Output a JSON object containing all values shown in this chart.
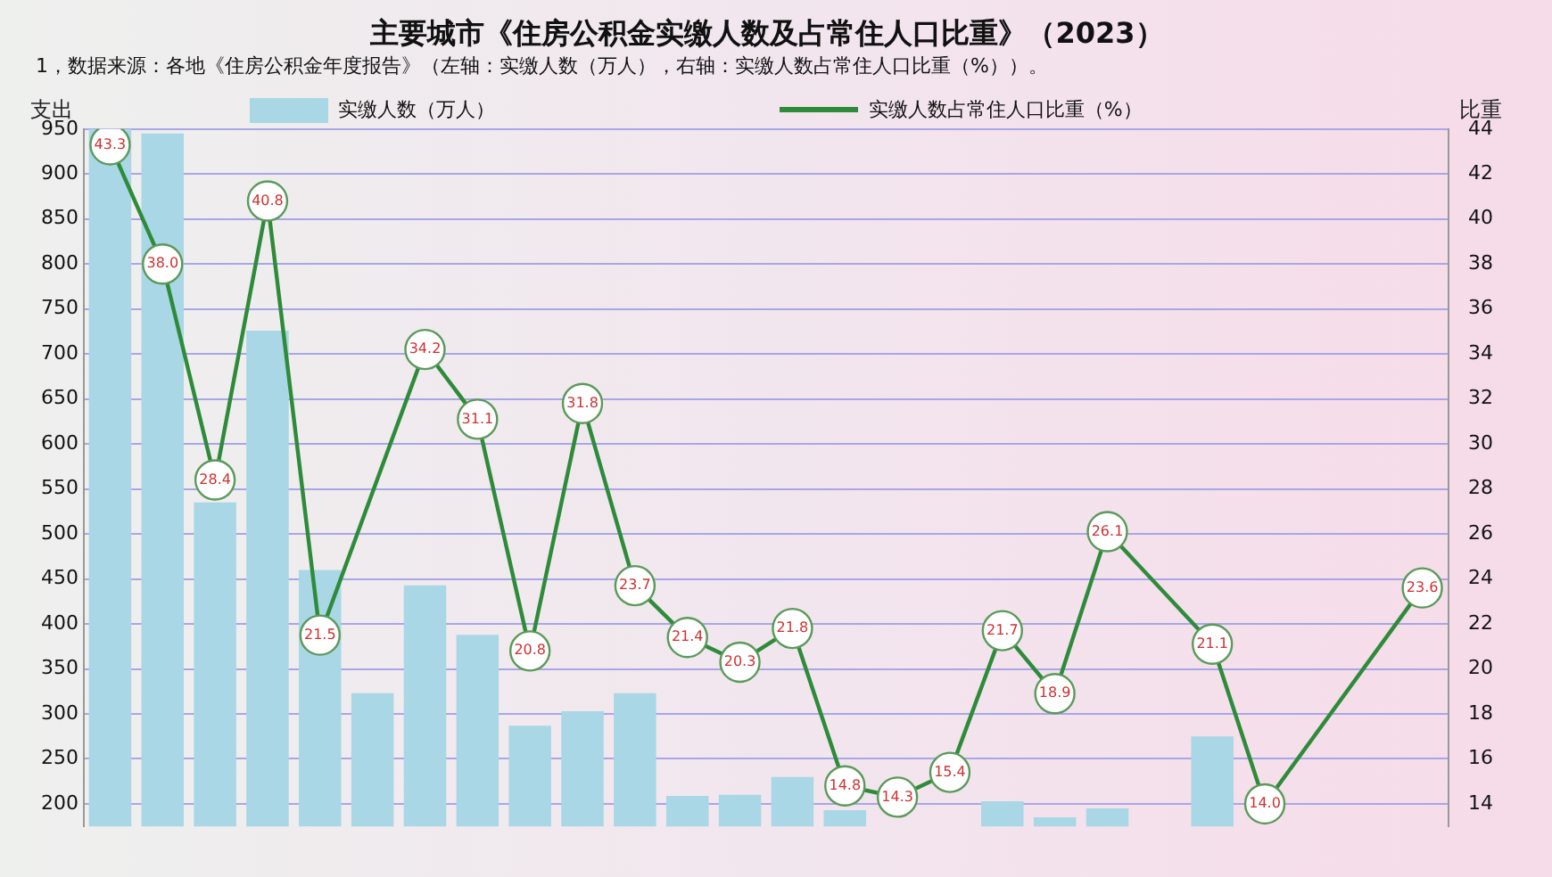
{
  "chart_data": {
    "type": "bar",
    "title": "主要城市《住房公积金实缴人数及占常住人口比重》（2023）",
    "subtitle": "1，数据来源：各地《住房公积金年度报告》（左轴：实缴人数（万人），右轴：实缴人数占常住人口比重（%））。",
    "ylabel": "支出",
    "y2label": "比重",
    "categories": [
      null,
      null,
      null,
      null,
      null,
      null,
      null,
      null,
      null,
      null,
      null,
      null,
      null,
      null,
      null,
      null,
      null,
      null,
      null,
      null,
      null,
      null,
      null,
      null,
      null,
      null
    ],
    "series": [
      {
        "name": "实缴人数（万人）",
        "color": "#a9d7e6",
        "values": [
          950,
          945,
          535,
          726,
          460,
          323,
          443,
          388,
          287,
          303,
          323,
          209,
          210,
          230,
          193,
          null,
          null,
          203,
          185,
          195,
          null,
          275,
          null,
          null,
          null,
          null
        ]
      },
      {
        "name": "实缴人数占常住人口比重（%）",
        "type": "line",
        "axis": "y2",
        "color": "#2e8b3a",
        "marker": "circle",
        "values": [
          43.3,
          38.0,
          28.4,
          40.8,
          21.5,
          null,
          34.2,
          31.1,
          20.8,
          31.8,
          23.7,
          21.4,
          20.3,
          21.8,
          14.8,
          14.3,
          15.4,
          21.7,
          18.9,
          26.1,
          null,
          21.1,
          14.0,
          null,
          null,
          23.6
        ],
        "value_labels": [
          "43.3",
          "38.0",
          "28.4",
          "40.8",
          "21.5",
          null,
          "34.2",
          "31.1",
          "20.8",
          "31.8",
          "23.7",
          "21.4",
          "20.3",
          "21.8",
          "14.8",
          "14.3",
          "15.4",
          "21.7",
          "18.9",
          "26.1",
          null,
          "21.1",
          "14.0",
          null,
          null,
          "23.6"
        ]
      }
    ],
    "ylim": [
      175,
      950
    ],
    "yticks": [
      200,
      250,
      300,
      350,
      400,
      450,
      500,
      550,
      600,
      650,
      700,
      750,
      800,
      850,
      900,
      950
    ],
    "y2lim": [
      13,
      44
    ],
    "y2ticks": [
      14,
      16,
      18,
      20,
      22,
      24,
      26,
      28,
      30,
      32,
      34,
      36,
      38,
      40,
      42,
      44
    ],
    "grid": "y",
    "legend": "top"
  }
}
